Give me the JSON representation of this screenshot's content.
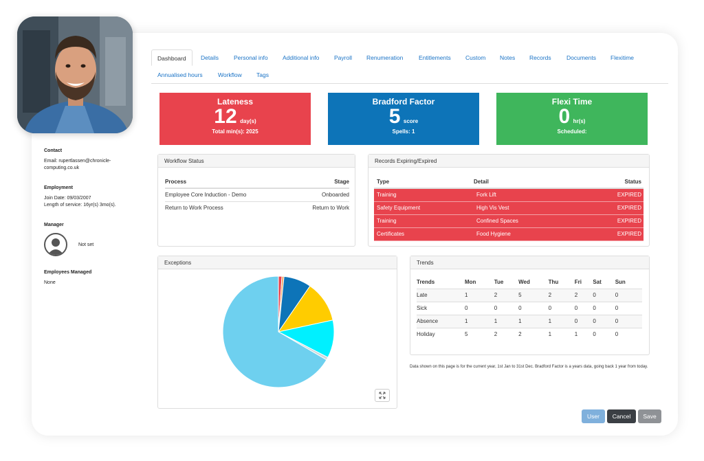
{
  "profile": {
    "contact_heading": "Contact",
    "email_line1": "Email: rupertlassen@chronicle-",
    "email_line2": "computing.co.uk",
    "employment_heading": "Employment",
    "join_date": "Join Date: 09/03/2007",
    "length_of_service": "Length of service: 16yr(s) 3mo(s).",
    "manager_heading": "Manager",
    "manager_value": "Not set",
    "managed_heading": "Employees Managed",
    "managed_value": "None"
  },
  "tabs": [
    "Dashboard",
    "Details",
    "Personal info",
    "Additional info",
    "Payroll",
    "Renumeration",
    "Entitlements",
    "Custom",
    "Notes",
    "Records",
    "Documents",
    "Flexitime",
    "Annualised hours",
    "Workflow",
    "Tags"
  ],
  "kpis": {
    "lateness": {
      "title": "Lateness",
      "value": "12",
      "unit": "day(s)",
      "sub": "Total min(s): 2025",
      "color": "#e8434d"
    },
    "bradford": {
      "title": "Bradford Factor",
      "value": "5",
      "unit": "score",
      "sub": "Spells: 1",
      "color": "#0d74b8"
    },
    "flexi": {
      "title": "Flexi Time",
      "value": "0",
      "unit": "hr(s)",
      "sub": "Scheduled:",
      "color": "#3fb65c"
    }
  },
  "workflow": {
    "title": "Workflow Status",
    "headers": [
      "Process",
      "Stage"
    ],
    "rows": [
      [
        "Employee Core Induction - Demo",
        "Onboarded"
      ],
      [
        "Return to Work Process",
        "Return to Work"
      ]
    ]
  },
  "records": {
    "title": "Records Expiring/Expired",
    "headers": [
      "Type",
      "Detail",
      "Status"
    ],
    "rows": [
      [
        "Training",
        "Fork Lift",
        "EXPIRED"
      ],
      [
        "Safety Equipment",
        "High Vis Vest",
        "EXPIRED"
      ],
      [
        "Training",
        "Confined Spaces",
        "EXPIRED"
      ],
      [
        "Certificates",
        "Food Hygiene",
        "EXPIRED"
      ]
    ]
  },
  "exceptions": {
    "title": "Exceptions"
  },
  "trends": {
    "title": "Trends",
    "headers": [
      "Trends",
      "Mon",
      "Tue",
      "Wed",
      "Thu",
      "Fri",
      "Sat",
      "Sun"
    ],
    "rows": [
      [
        "Late",
        "1",
        "2",
        "5",
        "2",
        "2",
        "0",
        "0"
      ],
      [
        "Sick",
        "0",
        "0",
        "0",
        "0",
        "0",
        "0",
        "0"
      ],
      [
        "Absence",
        "1",
        "1",
        "1",
        "1",
        "0",
        "0",
        "0"
      ],
      [
        "Holiday",
        "5",
        "2",
        "2",
        "1",
        "1",
        "0",
        "0"
      ]
    ]
  },
  "note": "Data shown on this page is for the current year, 1st Jan to 31st Dec. Bradford Factor is a years data, going back 1 year from today.",
  "buttons": {
    "user": "User",
    "cancel": "Cancel",
    "save": "Save"
  },
  "colors": {
    "accent": "#1a73c6",
    "danger": "#e8434d",
    "primary": "#0d74b8",
    "success": "#3fb65c"
  },
  "chart_data": {
    "type": "pie",
    "title": "",
    "slices": [
      {
        "value": 1,
        "color": "#e8434d"
      },
      {
        "value": 0.6,
        "color": "#f0a35a"
      },
      {
        "value": 8,
        "color": "#0d74b8"
      },
      {
        "value": 12,
        "color": "#ffcc00"
      },
      {
        "value": 11,
        "color": "#00f0ff"
      },
      {
        "value": 0.8,
        "color": "#cfd8dc"
      },
      {
        "value": 66.6,
        "color": "#6ed0ef"
      }
    ]
  }
}
